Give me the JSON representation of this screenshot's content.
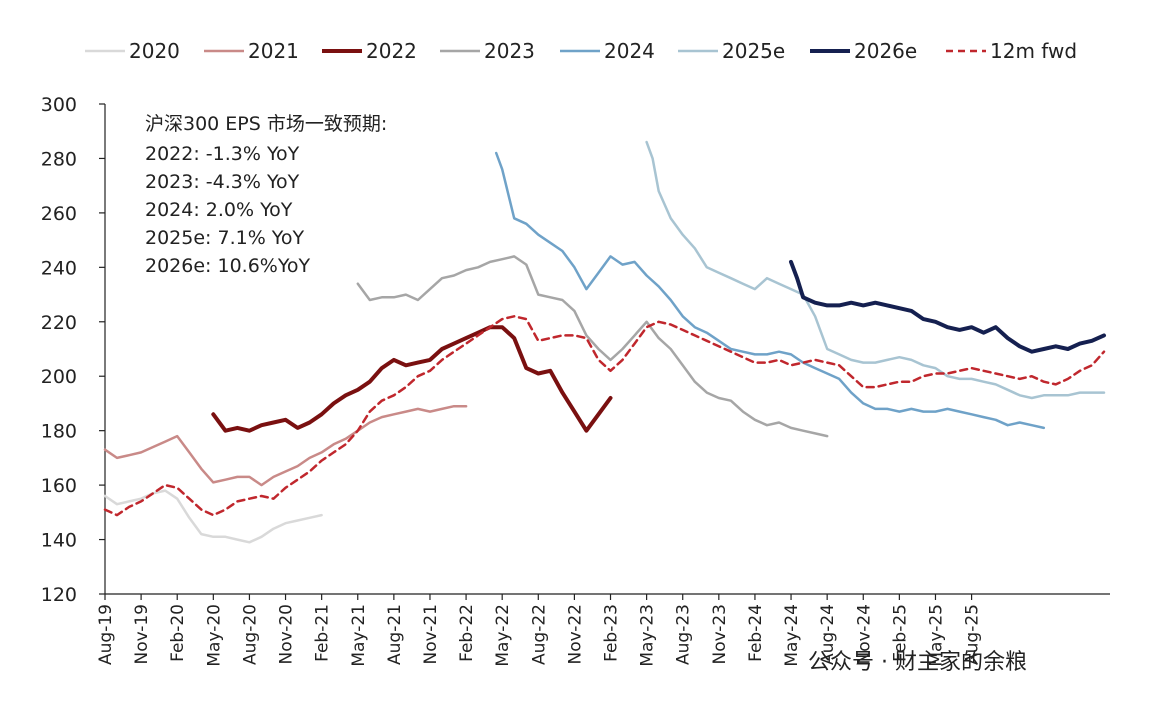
{
  "chart_data": {
    "type": "line",
    "title": "",
    "xlabel": "",
    "ylabel": "",
    "ylim": [
      120,
      300
    ],
    "yticks": [
      120,
      140,
      160,
      180,
      200,
      220,
      240,
      260,
      280,
      300
    ],
    "xticks": [
      "Aug-19",
      "Nov-19",
      "Feb-20",
      "May-20",
      "Aug-20",
      "Nov-20",
      "Feb-21",
      "May-21",
      "Aug-21",
      "Nov-21",
      "Feb-22",
      "May-22",
      "Aug-22",
      "Nov-22",
      "Feb-23",
      "May-23",
      "Aug-23",
      "Nov-23",
      "Feb-24",
      "May-24",
      "Aug-24",
      "Nov-24",
      "Feb-25",
      "May-25",
      "Aug-25"
    ],
    "x_unit": "months since Aug-19",
    "legend_position": "top",
    "grid": false,
    "annotation": {
      "title": "沪深300 EPS 市场一致预期:",
      "lines": [
        "2022: -1.3% YoY",
        "2023: -4.3% YoY",
        "2024: 2.0% YoY",
        "2025e: 7.1% YoY",
        "2026e: 10.6%YoY"
      ]
    },
    "series": [
      {
        "name": "2020",
        "color": "#d9d9d9",
        "style": "solid",
        "width": 2.5,
        "x": [
          0,
          1,
          2,
          3,
          4,
          5,
          6,
          7,
          8,
          9,
          10,
          11,
          12,
          13,
          14,
          15,
          16,
          17,
          18
        ],
        "y": [
          156,
          153,
          154,
          155,
          157,
          158,
          155,
          148,
          142,
          141,
          141,
          140,
          139,
          141,
          144,
          146,
          147,
          148,
          149
        ]
      },
      {
        "name": "2021",
        "color": "#c98a88",
        "style": "solid",
        "width": 2.5,
        "x": [
          0,
          1,
          2,
          3,
          4,
          5,
          6,
          7,
          8,
          9,
          10,
          11,
          12,
          13,
          14,
          15,
          16,
          17,
          18,
          19,
          20,
          21,
          22,
          23,
          24,
          25,
          26,
          27,
          28,
          29,
          30
        ],
        "y": [
          173,
          170,
          171,
          172,
          174,
          176,
          178,
          172,
          166,
          161,
          162,
          163,
          163,
          160,
          163,
          165,
          167,
          170,
          172,
          175,
          177,
          180,
          183,
          185,
          186,
          187,
          188,
          187,
          188,
          189,
          189
        ]
      },
      {
        "name": "2022",
        "color": "#7a1010",
        "style": "solid",
        "width": 4,
        "x": [
          9,
          10,
          11,
          12,
          13,
          14,
          15,
          16,
          17,
          18,
          19,
          20,
          21,
          22,
          23,
          24,
          25,
          26,
          27,
          28,
          29,
          30,
          31,
          32,
          33,
          34,
          35,
          36,
          37,
          38,
          39,
          40,
          41,
          42
        ],
        "y": [
          186,
          180,
          181,
          180,
          182,
          183,
          184,
          181,
          183,
          186,
          190,
          193,
          195,
          198,
          203,
          206,
          204,
          205,
          206,
          210,
          212,
          214,
          216,
          218,
          218,
          214,
          203,
          201,
          202,
          194,
          187,
          180,
          186,
          192
        ]
      },
      {
        "name": "2023",
        "color": "#a6a6a6",
        "style": "solid",
        "width": 2.5,
        "x": [
          21,
          22,
          23,
          24,
          25,
          26,
          27,
          28,
          29,
          30,
          31,
          32,
          33,
          34,
          35,
          36,
          37,
          38,
          39,
          40,
          41,
          42,
          43,
          44,
          45,
          46,
          47,
          48,
          49,
          50,
          51,
          52,
          53,
          54,
          55,
          56,
          57,
          58,
          59,
          60
        ],
        "y": [
          234,
          228,
          229,
          229,
          230,
          228,
          232,
          236,
          237,
          239,
          240,
          242,
          243,
          244,
          241,
          230,
          229,
          228,
          224,
          215,
          210,
          206,
          210,
          215,
          220,
          214,
          210,
          204,
          198,
          194,
          192,
          191,
          187,
          184,
          182,
          183,
          181,
          180,
          179,
          178
        ]
      },
      {
        "name": "2024",
        "color": "#6fa2c8",
        "style": "solid",
        "width": 2.5,
        "x": [
          32.5,
          33,
          34,
          35,
          36,
          37,
          38,
          39,
          40,
          41,
          42,
          43,
          44,
          45,
          46,
          47,
          48,
          49,
          50,
          51,
          52,
          53,
          54,
          55,
          56,
          57,
          58,
          59,
          60,
          61,
          62,
          63,
          64,
          65,
          66,
          67,
          68,
          69,
          70,
          71,
          72,
          73,
          74,
          75,
          76,
          77,
          78
        ],
        "y": [
          282,
          276,
          258,
          256,
          252,
          249,
          246,
          240,
          232,
          238,
          244,
          241,
          242,
          237,
          233,
          228,
          222,
          218,
          216,
          213,
          210,
          209,
          208,
          208,
          209,
          208,
          205,
          203,
          201,
          199,
          194,
          190,
          188,
          188,
          187,
          188,
          187,
          187,
          188,
          187,
          186,
          185,
          184,
          182,
          183,
          182,
          181
        ]
      },
      {
        "name": "2025e",
        "color": "#a8c4d2",
        "style": "solid",
        "width": 2.5,
        "x": [
          45,
          45.5,
          46,
          47,
          48,
          49,
          50,
          51,
          52,
          53,
          54,
          55,
          56,
          57,
          58,
          59,
          60,
          61,
          62,
          63,
          64,
          65,
          66,
          67,
          68,
          69,
          70,
          71,
          72,
          73,
          74,
          75,
          76,
          77,
          78,
          79,
          80,
          81,
          82,
          83
        ],
        "y": [
          286,
          280,
          268,
          258,
          252,
          247,
          240,
          238,
          236,
          234,
          232,
          236,
          234,
          232,
          230,
          222,
          210,
          208,
          206,
          205,
          205,
          206,
          207,
          206,
          204,
          203,
          200,
          199,
          199,
          198,
          197,
          195,
          193,
          192,
          193,
          193,
          193,
          194,
          194,
          194
        ]
      },
      {
        "name": "2026e",
        "color": "#152050",
        "style": "solid",
        "width": 4,
        "x": [
          57,
          57.5,
          58,
          59,
          60,
          61,
          62,
          63,
          64,
          65,
          66,
          67,
          68,
          69,
          70,
          71,
          72,
          73,
          74,
          75,
          76,
          77,
          78,
          79,
          80,
          81,
          82,
          83
        ],
        "y": [
          242,
          236,
          229,
          227,
          226,
          226,
          227,
          226,
          227,
          226,
          225,
          224,
          221,
          220,
          218,
          217,
          218,
          216,
          218,
          214,
          211,
          209,
          210,
          211,
          210,
          212,
          213,
          215
        ]
      },
      {
        "name": "12m fwd",
        "color": "#c0272d",
        "style": "dashed",
        "width": 2.5,
        "x": [
          0,
          1,
          2,
          3,
          4,
          5,
          6,
          7,
          8,
          9,
          10,
          11,
          12,
          13,
          14,
          15,
          16,
          17,
          18,
          19,
          20,
          21,
          22,
          23,
          24,
          25,
          26,
          27,
          28,
          29,
          30,
          31,
          32,
          33,
          34,
          35,
          36,
          37,
          38,
          39,
          40,
          41,
          42,
          43,
          44,
          45,
          46,
          47,
          48,
          49,
          50,
          51,
          52,
          53,
          54,
          55,
          56,
          57,
          58,
          59,
          60,
          61,
          62,
          63,
          64,
          65,
          66,
          67,
          68,
          69,
          70,
          71,
          72,
          73,
          74,
          75,
          76,
          77,
          78,
          79,
          80,
          81,
          82,
          83
        ],
        "y": [
          151,
          149,
          152,
          154,
          157,
          160,
          159,
          155,
          151,
          149,
          151,
          154,
          155,
          156,
          155,
          159,
          162,
          165,
          169,
          172,
          175,
          180,
          187,
          191,
          193,
          196,
          200,
          202,
          206,
          209,
          212,
          215,
          218,
          221,
          222,
          221,
          213,
          214,
          215,
          215,
          214,
          206,
          202,
          206,
          212,
          218,
          220,
          219,
          217,
          215,
          213,
          211,
          209,
          207,
          205,
          205,
          206,
          204,
          205,
          206,
          205,
          204,
          200,
          196,
          196,
          197,
          198,
          198,
          200,
          201,
          201,
          202,
          203,
          202,
          201,
          200,
          199,
          200,
          198,
          197,
          199,
          202,
          204,
          209
        ]
      }
    ]
  },
  "watermark": "公众号 · 财主家的余粮"
}
